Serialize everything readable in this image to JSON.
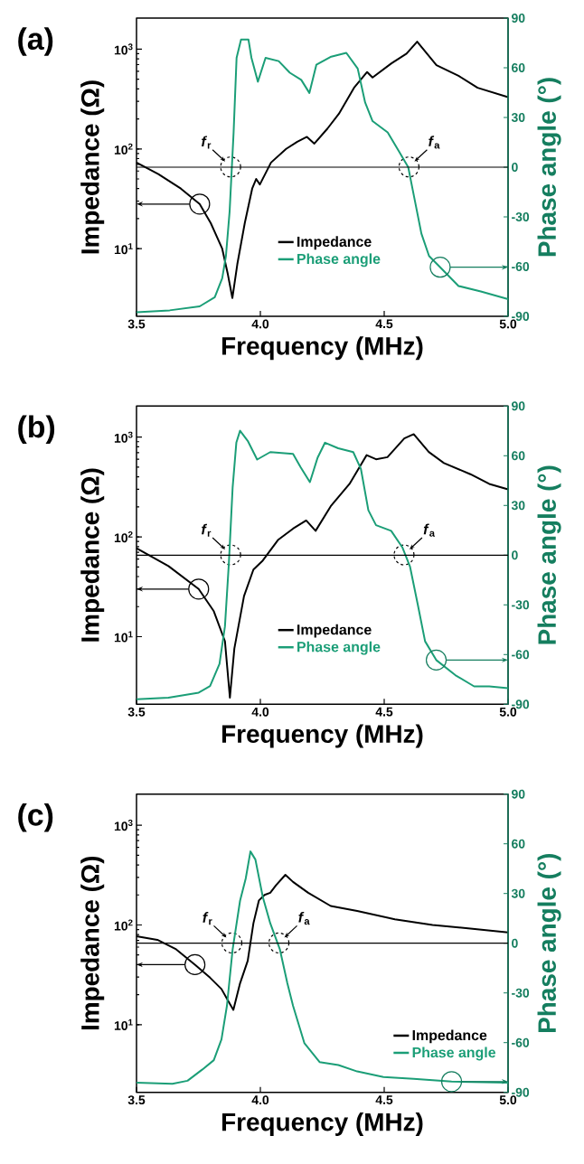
{
  "chart_data": [
    {
      "type": "line",
      "title": "(a)",
      "xlabel": "Frequency (MHz)",
      "ylabel": "Impedance (Ω)",
      "y2label": "Phase angle (°)",
      "log": "y",
      "legend": "bottom",
      "xlim": [
        3.5,
        5.0
      ],
      "xticks": [
        {
          "value": 3.5,
          "label": "3.5"
        },
        {
          "value": 4.0,
          "label": "4.0"
        },
        {
          "value": 4.5,
          "label": "4.5"
        },
        {
          "value": 5.0,
          "label": "5.0"
        }
      ],
      "ylim": [
        2.1,
        2050
      ],
      "yticks": [
        {
          "value": 10,
          "label": "10$^{1}$"
        },
        {
          "value": 100,
          "label": "10$^{2}$"
        },
        {
          "value": 1000,
          "label": "10$^{3}$"
        }
      ],
      "y2lim": [
        -90,
        90
      ],
      "y2ticks": [
        -90,
        -60,
        -30,
        0,
        30,
        60,
        90
      ],
      "ref_lines": [
        {
          "axis": "y2",
          "value": 0,
          "color": "#000000"
        }
      ],
      "annotations": [
        {
          "text": "*f*$_{r}$",
          "x": 3.88,
          "y": 66
        },
        {
          "text": "*f*$_{a}$",
          "x": 4.6,
          "y": 66
        }
      ],
      "series": [
        {
          "name": "Impedance",
          "color": "#000000",
          "x": [
            3.5,
            3.588,
            3.679,
            3.755,
            3.8,
            3.846,
            3.869,
            3.887,
            3.907,
            3.937,
            3.967,
            3.983,
            3.998,
            4.043,
            4.104,
            4.149,
            4.188,
            4.218,
            4.271,
            4.317,
            4.378,
            4.431,
            4.453,
            4.529,
            4.59,
            4.633,
            4.711,
            4.8,
            4.877,
            5.0
          ],
          "values": [
            73,
            56,
            40,
            28,
            18,
            10,
            5.5,
            3.2,
            7,
            18,
            40,
            50,
            44,
            73,
            100,
            118,
            132,
            113,
            160,
            225,
            410,
            590,
            520,
            720,
            900,
            1190,
            690,
            540,
            410,
            330
          ]
        },
        {
          "name": "Phase angle",
          "color": "#1b9e77",
          "axis": "y2",
          "x": [
            3.5,
            3.634,
            3.755,
            3.816,
            3.846,
            3.861,
            3.876,
            3.892,
            3.904,
            3.922,
            3.952,
            3.964,
            3.99,
            4.021,
            4.074,
            4.119,
            4.165,
            4.198,
            4.226,
            4.286,
            4.347,
            4.393,
            4.423,
            4.453,
            4.514,
            4.559,
            4.597,
            4.62,
            4.65,
            4.681,
            4.726,
            4.8,
            4.89,
            5.0
          ],
          "values": [
            -87.6,
            -86.4,
            -84,
            -78.5,
            -67,
            -53.6,
            -26.5,
            21,
            66,
            77,
            77,
            66,
            51.6,
            66,
            64,
            57,
            52.7,
            44.8,
            61.8,
            66.7,
            69,
            59.5,
            39,
            27.8,
            21,
            9.7,
            0,
            -17.4,
            -40,
            -53.6,
            -60.4,
            -71.7,
            -75,
            -79.6
          ]
        }
      ]
    },
    {
      "type": "line",
      "title": "(b)",
      "xlabel": "Frequency (MHz)",
      "ylabel": "Impedance (Ω)",
      "y2label": "Phase angle (°)",
      "log": "y",
      "legend": "bottom",
      "xlim": [
        3.5,
        5.0
      ],
      "xticks": [
        {
          "value": 3.5,
          "label": "3.5"
        },
        {
          "value": 4.0,
          "label": "4.0"
        },
        {
          "value": 4.5,
          "label": "4.5"
        },
        {
          "value": 5.0,
          "label": "5.0"
        }
      ],
      "ylim": [
        2.1,
        2050
      ],
      "yticks": [
        {
          "value": 10,
          "label": "10$^{1}$"
        },
        {
          "value": 100,
          "label": "10$^{2}$"
        },
        {
          "value": 1000,
          "label": "10$^{3}$"
        }
      ],
      "y2lim": [
        -90,
        90
      ],
      "y2ticks": [
        -90,
        -60,
        -30,
        0,
        30,
        60,
        90
      ],
      "ref_lines": [
        {
          "axis": "y2",
          "value": 0,
          "color": "#000000"
        }
      ],
      "annotations": [
        {
          "text": "*f*$_{r}$",
          "x": 3.88,
          "y": 66
        },
        {
          "text": "*f*$_{a}$",
          "x": 4.58,
          "y": 66
        }
      ],
      "series": [
        {
          "name": "Impedance",
          "color": "#000000",
          "x": [
            3.5,
            3.629,
            3.751,
            3.812,
            3.857,
            3.877,
            3.895,
            3.934,
            3.972,
            4.01,
            4.071,
            4.132,
            4.185,
            4.223,
            4.284,
            4.36,
            4.429,
            4.467,
            4.513,
            4.581,
            4.619,
            4.68,
            4.741,
            4.848,
            4.924,
            5.0
          ],
          "values": [
            77,
            51,
            30,
            18,
            9,
            2.45,
            7.6,
            25.5,
            47,
            58,
            93,
            121,
            146,
            115,
            203,
            340,
            660,
            600,
            630,
            970,
            1070,
            710,
            550,
            425,
            340,
            300
          ]
        },
        {
          "name": "Phase angle",
          "color": "#1b9e77",
          "axis": "y2",
          "x": [
            3.5,
            3.629,
            3.751,
            3.797,
            3.835,
            3.857,
            3.873,
            3.888,
            3.903,
            3.918,
            3.949,
            3.987,
            4.04,
            4.132,
            4.162,
            4.2,
            4.231,
            4.261,
            4.314,
            4.375,
            4.406,
            4.436,
            4.467,
            4.528,
            4.574,
            4.604,
            4.635,
            4.665,
            4.71,
            4.787,
            4.863,
            4.924,
            5.0
          ],
          "values": [
            -87,
            -86,
            -83,
            -79,
            -65.6,
            -43,
            -4.5,
            40.7,
            67.9,
            75.1,
            69,
            57.7,
            62.2,
            61.1,
            53.2,
            44.1,
            58.8,
            67.9,
            64.5,
            62.2,
            52,
            27.1,
            18.1,
            14.7,
            4.5,
            -6.8,
            -29.4,
            -52,
            -63.3,
            -72.4,
            -79.2,
            -79.2,
            -80.3
          ]
        }
      ]
    },
    {
      "type": "line",
      "title": "(c)",
      "xlabel": "Frequency (MHz)",
      "ylabel": "Impedance (Ω)",
      "y2label": "Phase angle (°)",
      "log": "y",
      "legend": "bottom right",
      "xlim": [
        3.5,
        5.0
      ],
      "xticks": [
        {
          "value": 3.5,
          "label": "3.5"
        },
        {
          "value": 4.0,
          "label": "4.0"
        },
        {
          "value": 4.5,
          "label": "4.5"
        },
        {
          "value": 5.0,
          "label": "5.0"
        }
      ],
      "ylim": [
        2.1,
        2050
      ],
      "yticks": [
        {
          "value": 10,
          "label": "10$^{1}$"
        },
        {
          "value": 100,
          "label": "10$^{2}$"
        },
        {
          "value": 1000,
          "label": "10$^{3}$"
        }
      ],
      "y2lim": [
        -90,
        90
      ],
      "y2ticks": [
        -90,
        -60,
        -30,
        0,
        30,
        60,
        90
      ],
      "ref_lines": [
        {
          "axis": "y2",
          "value": 0,
          "color": "#000000"
        }
      ],
      "annotations": [
        {
          "text": "*f*$_{r}$",
          "x": 3.885,
          "y": 66
        },
        {
          "text": "*f*$_{a}$",
          "x": 4.075,
          "y": 66
        }
      ],
      "series": [
        {
          "name": "Impedance",
          "color": "#000000",
          "x": [
            3.5,
            3.584,
            3.66,
            3.736,
            3.797,
            3.843,
            3.873,
            3.891,
            3.918,
            3.949,
            3.972,
            3.994,
            4.017,
            4.04,
            4.063,
            4.101,
            4.132,
            4.193,
            4.284,
            4.391,
            4.543,
            4.695,
            4.848,
            5.0
          ],
          "values": [
            77,
            71,
            57,
            40,
            29.6,
            22.8,
            16.8,
            14.1,
            26,
            43.7,
            104,
            176,
            200,
            210,
            250,
            318,
            270,
            210,
            155,
            138,
            114,
            100,
            92,
            84
          ]
        },
        {
          "name": "Phase angle",
          "color": "#1b9e77",
          "axis": "y2",
          "x": [
            3.5,
            3.645,
            3.706,
            3.766,
            3.812,
            3.843,
            3.865,
            3.888,
            3.918,
            3.941,
            3.96,
            3.98,
            4.01,
            4.04,
            4.079,
            4.109,
            4.132,
            4.178,
            4.239,
            4.315,
            4.391,
            4.497,
            4.619,
            4.772,
            5.0
          ],
          "values": [
            -84.2,
            -84.8,
            -83,
            -76.2,
            -70.6,
            -58.1,
            -37.8,
            -3.8,
            25.6,
            39.1,
            55.4,
            50.5,
            27.8,
            12,
            -3.8,
            -24.2,
            -37.8,
            -60.4,
            -71.7,
            -73.5,
            -77.4,
            -80.8,
            -81.9,
            -83.5,
            -84.2
          ]
        }
      ]
    }
  ]
}
